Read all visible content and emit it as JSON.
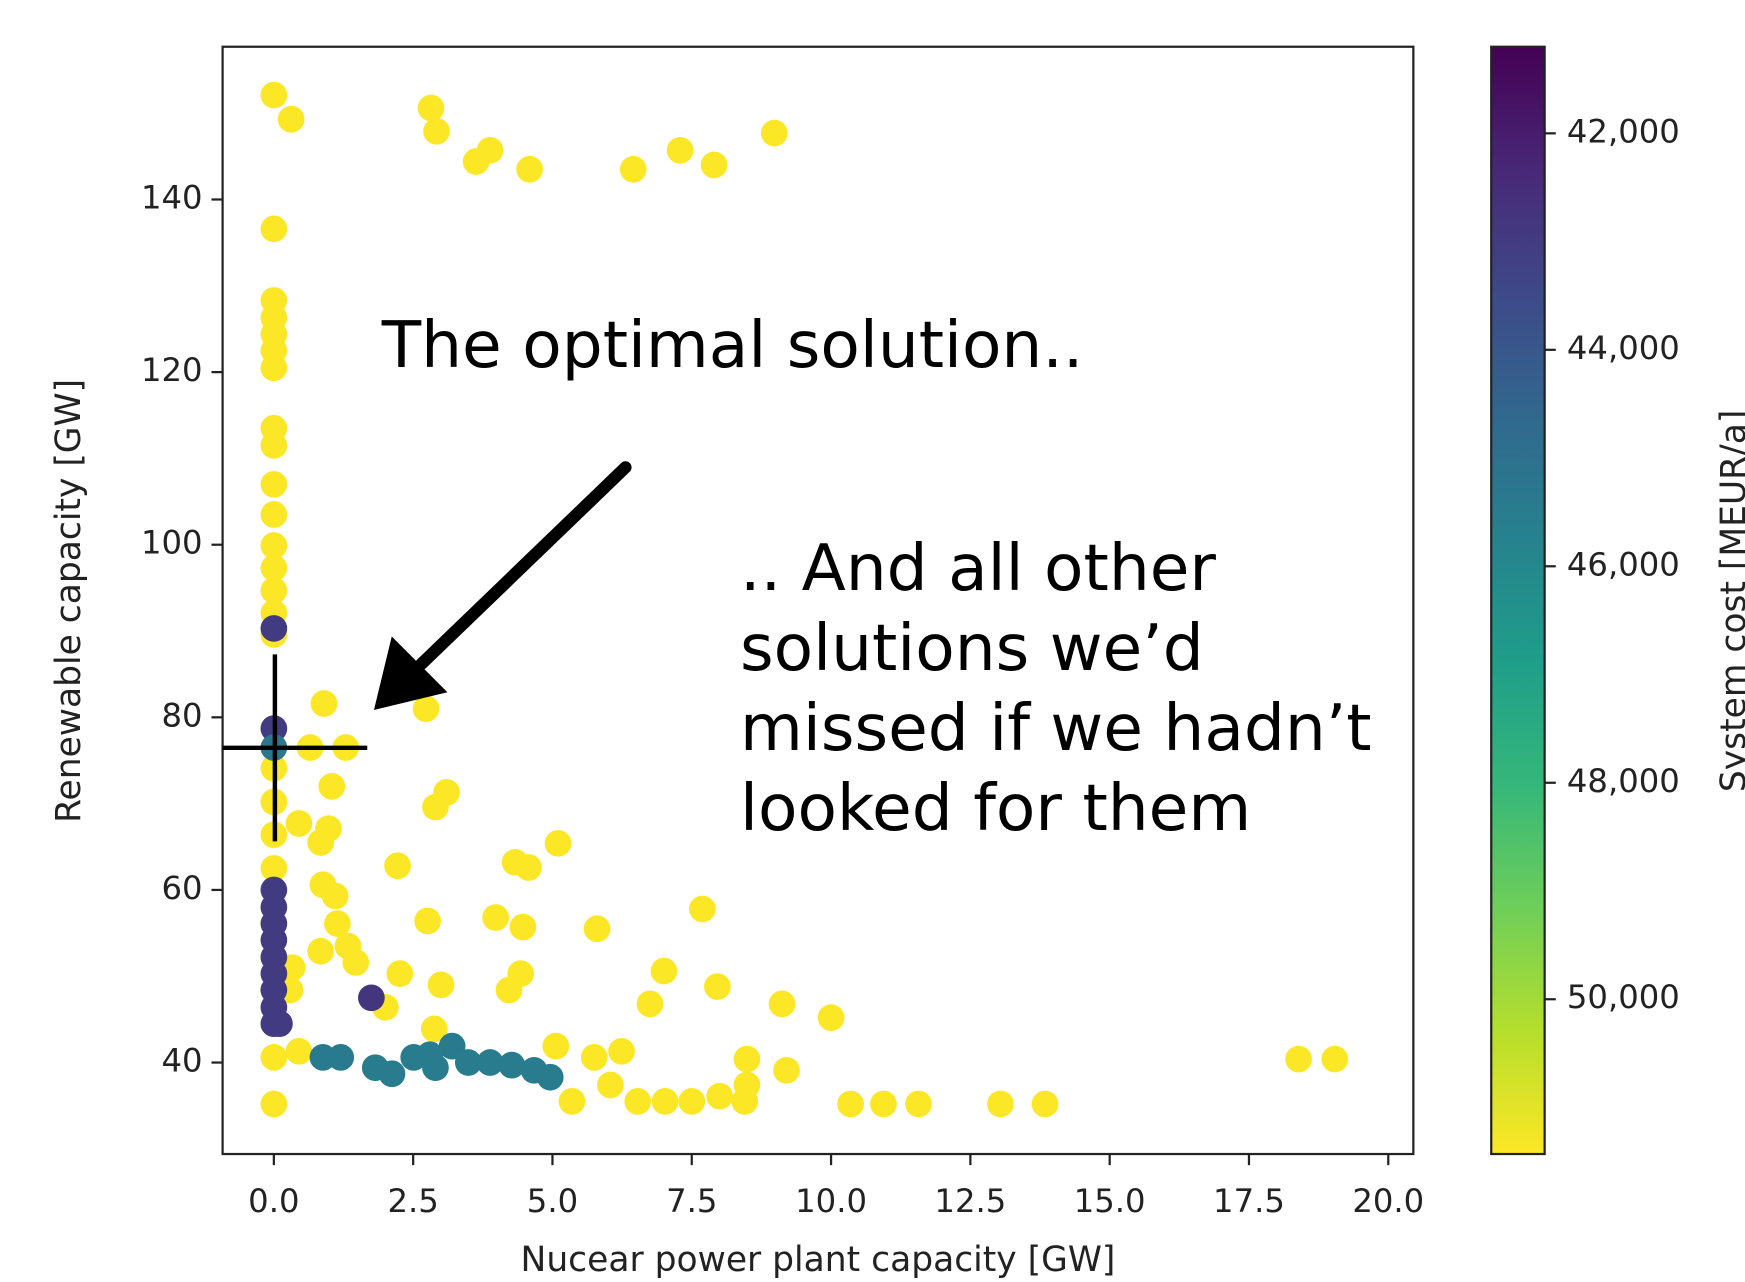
{
  "chart_data": {
    "type": "scatter",
    "xlabel": "Nucear power plant capacity [GW]",
    "ylabel": "Renewable capacity [GW]",
    "colorbar_label": "System cost [MEUR/a]",
    "colormap": "viridis",
    "annotations": [
      "The optimal solution..",
      ".. And all other",
      "solutions we’d",
      "missed if we hadn’t",
      "looked for them"
    ],
    "xlim": [
      -0.92,
      20.45
    ],
    "ylim": [
      29.4,
      157.7
    ],
    "clim": [
      41200,
      51430
    ],
    "xticks": [
      {
        "value": 0,
        "label": "0.0"
      },
      2.5,
      {
        "value": 5,
        "label": "5.0"
      },
      7.5,
      {
        "value": 10,
        "label": "10.0"
      },
      12.5,
      {
        "value": 15,
        "label": "15.0"
      },
      17.5,
      {
        "value": 20,
        "label": "20.0"
      }
    ],
    "yticks": [
      40,
      60,
      80,
      100,
      120,
      140
    ],
    "cticks": [
      {
        "value": 42000,
        "label": "42,000"
      },
      {
        "value": 44000,
        "label": "44,000"
      },
      {
        "value": 46000,
        "label": "46,000"
      },
      {
        "value": 48000,
        "label": "48,000"
      },
      {
        "value": 50000,
        "label": "50,000"
      }
    ],
    "x": [
      0,
      0.31,
      2.82,
      2.92,
      3.63,
      3.88,
      4.59,
      6.45,
      7.29,
      7.9,
      8.98,
      0,
      0,
      0,
      0,
      0,
      0,
      0,
      0,
      0,
      0,
      0,
      0,
      0,
      0,
      0,
      0,
      0,
      0,
      0,
      0,
      0,
      0,
      0,
      0,
      0,
      0.9,
      2.73,
      0.65,
      1.29,
      1.04,
      3.1,
      2.9,
      0.45,
      0.98,
      0.84,
      0.88,
      1.1,
      1.14,
      1.33,
      1.47,
      0.84,
      2.22,
      2.76,
      3.0,
      2.26,
      2.0,
      2.88,
      0.33,
      0.29,
      0.45,
      3.98,
      4.47,
      4.33,
      4.57,
      5.1,
      5.8,
      7.69,
      7.0,
      6.75,
      7.96,
      9.12,
      10.0,
      4.43,
      4.22,
      5.06,
      5.75,
      6.24,
      5.35,
      6.04,
      6.53,
      7.02,
      7.5,
      8.0,
      8.45,
      8.49,
      8.49,
      9.2,
      10.35,
      10.94,
      11.57,
      13.04,
      13.84,
      18.39,
      19.04,
      0,
      0,
      0,
      0,
      0,
      0,
      0,
      0,
      0,
      0,
      0,
      0.1,
      1.75,
      0,
      0.88,
      1.2,
      1.82,
      2.12,
      2.51,
      2.9,
      3.2,
      3.49,
      3.88,
      4.27,
      4.67,
      4.96,
      2.8
    ],
    "values": [
      152.1,
      149.3,
      150.6,
      147.9,
      144.4,
      145.7,
      143.5,
      143.5,
      145.7,
      144,
      147.7,
      136.6,
      128.3,
      126.3,
      124.4,
      122.5,
      120.5,
      113.5,
      111.5,
      107,
      103.5,
      99.9,
      97.3,
      94.7,
      92.1,
      89.6,
      74.1,
      70.2,
      66.4,
      62.5,
      56.1,
      52.2,
      48.4,
      44.5,
      40.6,
      35.2,
      81.6,
      81,
      76.5,
      76.5,
      72,
      71.3,
      69.6,
      67.7,
      67.1,
      65.5,
      60.6,
      59.3,
      56.1,
      53.5,
      51.6,
      52.9,
      62.8,
      56.4,
      49,
      50.3,
      46.4,
      43.9,
      51,
      48.4,
      41.3,
      56.8,
      55.7,
      63.2,
      62.6,
      65.4,
      55.5,
      57.8,
      50.6,
      46.8,
      48.8,
      46.8,
      45.2,
      50.3,
      48.4,
      41.9,
      40.6,
      41.3,
      35.5,
      37.4,
      35.5,
      35.5,
      35.5,
      36.1,
      35.5,
      37.4,
      40.4,
      39.1,
      35.2,
      35.2,
      35.2,
      35.2,
      35.2,
      40.4,
      40.4,
      90.3,
      78.7,
      60,
      58,
      56.1,
      54.2,
      52.2,
      50.3,
      48.4,
      46.4,
      44.5,
      44.5,
      47.5,
      76.5,
      40.6,
      40.6,
      39.4,
      38.7,
      40.6,
      39.4,
      41.9,
      40,
      40,
      39.7,
      39.1,
      38.3,
      40.9
    ],
    "color_values": [
      51400,
      51400,
      51400,
      51400,
      51400,
      51400,
      51400,
      51400,
      51400,
      51400,
      51400,
      51400,
      51400,
      51400,
      51400,
      51400,
      51400,
      51400,
      51400,
      51400,
      51400,
      51400,
      51400,
      51400,
      51400,
      51400,
      51400,
      51400,
      51400,
      51400,
      51400,
      51400,
      51400,
      51400,
      51400,
      51400,
      51400,
      51400,
      51400,
      51400,
      51400,
      51400,
      51400,
      51400,
      51400,
      51400,
      51400,
      51400,
      51400,
      51400,
      51400,
      51400,
      51400,
      51400,
      51400,
      51400,
      51400,
      51400,
      51400,
      51400,
      51400,
      51400,
      51400,
      51400,
      51400,
      51400,
      51400,
      51400,
      51400,
      51400,
      51400,
      51400,
      51400,
      51400,
      51400,
      51400,
      51400,
      51400,
      51400,
      51400,
      51400,
      51400,
      51400,
      51400,
      51400,
      51400,
      51400,
      51400,
      51400,
      51400,
      51400,
      51400,
      51400,
      51400,
      51400,
      43000,
      43000,
      43000,
      43000,
      43000,
      43000,
      43000,
      43000,
      43000,
      43000,
      43000,
      43000,
      42800,
      45200,
      45400,
      45400,
      45500,
      45500,
      45500,
      45500,
      45400,
      45500,
      45500,
      45500,
      45500,
      45500,
      45500
    ]
  }
}
